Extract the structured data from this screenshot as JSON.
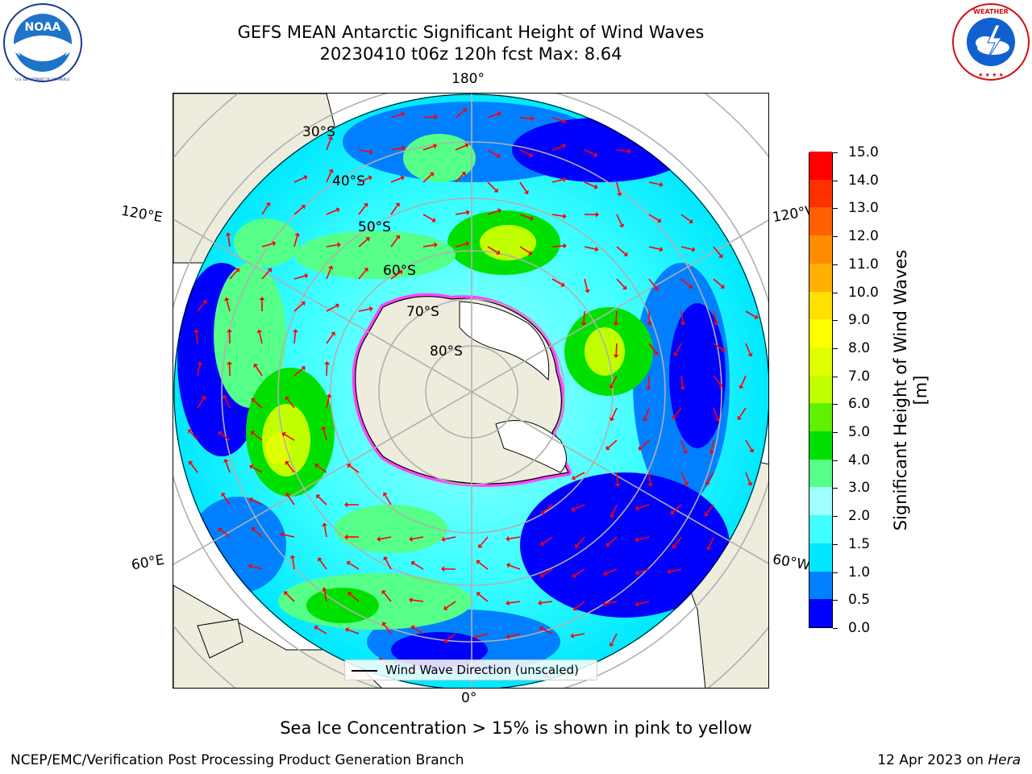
{
  "header": {
    "title_line1": "GEFS MEAN Antarctic Significant Height of Wind Waves",
    "title_line2": "20230410 t06z 120h fcst   Max: 8.64"
  },
  "logos": {
    "noaa_text": "NOAA",
    "noaa_ring": "NATIONAL OCEANIC AND ATMOSPHERIC ADMINISTRATION · U.S. DEPARTMENT OF COMMERCE",
    "nws_ring": "NATIONAL WEATHER SERVICE"
  },
  "map": {
    "projection": "south-polar-stereographic",
    "longitude_labels": {
      "top": "180°",
      "bottom": "0°",
      "upper_left": "120°E",
      "upper_right": "120°W",
      "lower_left": "60°E",
      "lower_right": "60°W"
    },
    "latitude_labels": [
      "30°S",
      "40°S",
      "50°S",
      "60°S",
      "70°S",
      "80°S"
    ],
    "legend_label": "Wind Wave Direction (unscaled)",
    "colors": {
      "land": "#eeecdc",
      "arrows": "#ff0000",
      "sea_ice": "#ff44ff",
      "grid": "#b0b0b0"
    }
  },
  "colorbar": {
    "title": "Significant Height of Wind Waves [m]",
    "tick_labels": [
      "0.0",
      "0.5",
      "1.0",
      "1.5",
      "2.0",
      "3.0",
      "4.0",
      "5.0",
      "6.0",
      "7.0",
      "8.0",
      "9.0",
      "10.0",
      "11.0",
      "12.0",
      "13.0",
      "14.0",
      "15.0"
    ],
    "bins": [
      {
        "from": "0.0",
        "to": "0.5",
        "color": "#0000ff"
      },
      {
        "from": "0.5",
        "to": "1.0",
        "color": "#0080ff"
      },
      {
        "from": "1.0",
        "to": "1.5",
        "color": "#00e8ff"
      },
      {
        "from": "1.5",
        "to": "2.0",
        "color": "#40ffff"
      },
      {
        "from": "2.0",
        "to": "3.0",
        "color": "#a0ffff"
      },
      {
        "from": "3.0",
        "to": "4.0",
        "color": "#55ff88"
      },
      {
        "from": "4.0",
        "to": "5.0",
        "color": "#00e000"
      },
      {
        "from": "5.0",
        "to": "6.0",
        "color": "#60f000"
      },
      {
        "from": "6.0",
        "to": "7.0",
        "color": "#c0ff00"
      },
      {
        "from": "7.0",
        "to": "8.0",
        "color": "#e0ff00"
      },
      {
        "from": "8.0",
        "to": "9.0",
        "color": "#ffff00"
      },
      {
        "from": "9.0",
        "to": "10.0",
        "color": "#ffe000"
      },
      {
        "from": "10.0",
        "to": "11.0",
        "color": "#ffb000"
      },
      {
        "from": "11.0",
        "to": "12.0",
        "color": "#ff8c00"
      },
      {
        "from": "12.0",
        "to": "13.0",
        "color": "#ff6000"
      },
      {
        "from": "13.0",
        "to": "14.0",
        "color": "#ff3000"
      },
      {
        "from": "14.0",
        "to": "15.0",
        "color": "#ff0000"
      }
    ]
  },
  "note": "Sea Ice Concentration > 15% is shown in pink to yellow",
  "footer": {
    "left": "NCEP/EMC/Verification Post Processing Product Generation Branch",
    "right_date": "12 Apr 2023 on ",
    "right_host": "Hera"
  }
}
